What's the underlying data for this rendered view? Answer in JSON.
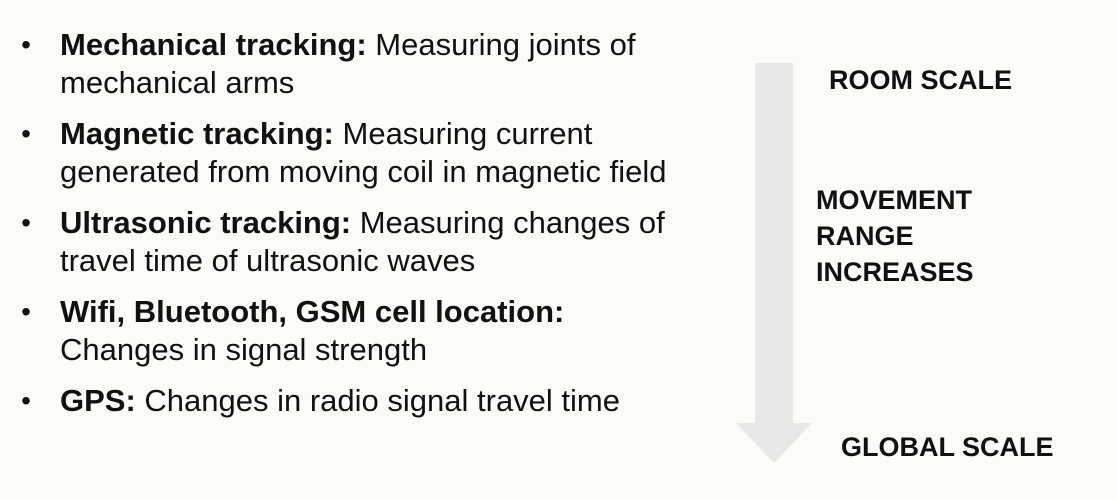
{
  "bullets": [
    {
      "term": "Mechanical tracking:",
      "text": " Measuring joints of mechanical arms"
    },
    {
      "term": "Magnetic tracking:",
      "text": " Measuring current generated from moving coil in magnetic field"
    },
    {
      "term": "Ultrasonic tracking:",
      "text": " Measuring changes of travel time of ultrasonic waves"
    },
    {
      "term": "Wifi, Bluetooth, GSM cell location:",
      "text": " Changes in signal strength"
    },
    {
      "term": "GPS:",
      "text": " Changes in radio signal travel time"
    }
  ],
  "bullet_symbol": "•",
  "scale": {
    "top_label": "ROOM SCALE",
    "bottom_label": "GLOBAL SCALE",
    "middle_lines": [
      "MOVEMENT",
      "RANGE",
      "INCREASES"
    ]
  },
  "colors": {
    "background": "#fcfbf7",
    "arrow": "#e8e8e6",
    "text": "#111111"
  }
}
